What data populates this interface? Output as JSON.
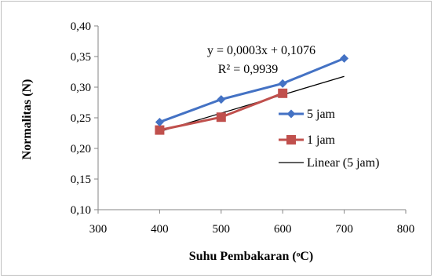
{
  "chart_data": {
    "type": "line",
    "xlabel": "Suhu Pembakaran (ᵒC)",
    "ylabel": "Normalitas  (N)",
    "xlim": [
      300,
      800
    ],
    "ylim": [
      0.1,
      0.4
    ],
    "x_ticks": [
      "300",
      "400",
      "500",
      "600",
      "700",
      "800"
    ],
    "y_ticks": [
      "0,10",
      "0,15",
      "0,20",
      "0,25",
      "0,30",
      "0,35",
      "0,40"
    ],
    "grid": false,
    "legend_position": "right",
    "series": [
      {
        "name": "5 jam",
        "color": "#4472c4",
        "marker": "diamond",
        "points": [
          {
            "x": 400,
            "y": 0.243
          },
          {
            "x": 500,
            "y": 0.28
          },
          {
            "x": 600,
            "y": 0.306
          },
          {
            "x": 700,
            "y": 0.347
          }
        ]
      },
      {
        "name": "1 jam",
        "color": "#c0504d",
        "marker": "square",
        "points": [
          {
            "x": 400,
            "y": 0.23
          },
          {
            "x": 500,
            "y": 0.251
          },
          {
            "x": 600,
            "y": 0.29
          }
        ]
      }
    ],
    "trendline": {
      "name": "Linear (5 jam)",
      "color": "#000000",
      "slope": 0.0003,
      "intercept": 0.1076,
      "x_range": [
        400,
        700
      ]
    },
    "annotations": [
      "y = 0,0003x + 0,1076",
      "R² = 0,9939"
    ]
  }
}
